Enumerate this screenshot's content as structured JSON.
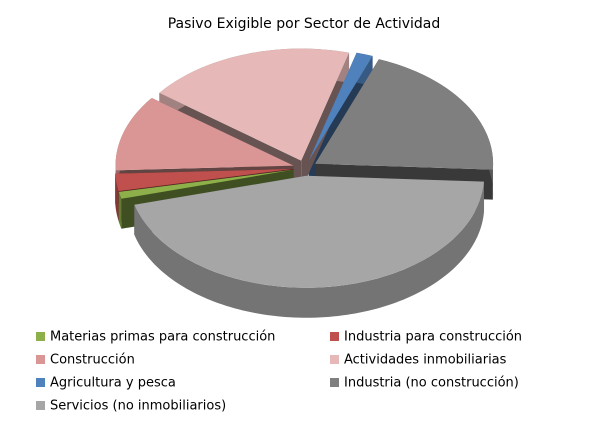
{
  "chart_data": {
    "type": "pie",
    "title": "Pasivo Exigible por Sector de Actividad",
    "categories": [
      "Materias primas para construcción",
      "Industria para construcción",
      "Construcción",
      "Actividades inmobiliarias",
      "Agricultura y pesca",
      "Industria (no construcción)",
      "Servicios (no inmobiliarios)"
    ],
    "values": [
      1,
      2.5,
      11,
      19,
      1.5,
      20,
      45
    ],
    "colors": [
      "#8db04a",
      "#c0504d",
      "#d99694",
      "#e6b9b8",
      "#4f81bd",
      "#7f7f7f",
      "#a6a6a6"
    ],
    "legend": "bottom"
  }
}
